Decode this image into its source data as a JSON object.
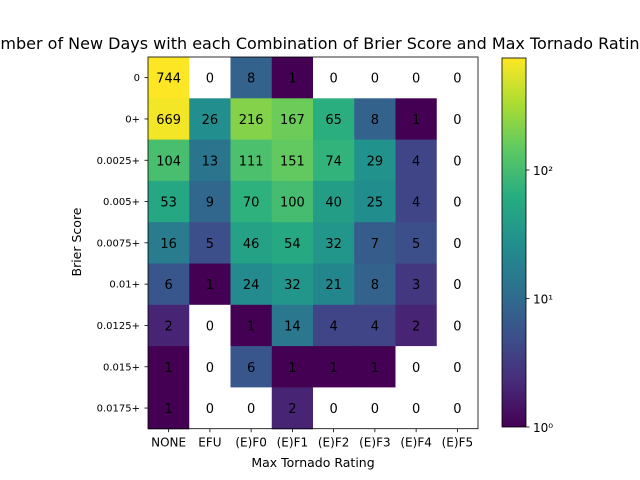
{
  "chart_data": {
    "type": "heatmap",
    "title": "Number of New Days with each Combination of Brier Score and Max Tornado Rating",
    "xlabel": "Max Tornado Rating",
    "ylabel": "Brier Score",
    "x_categories": [
      "NONE",
      "EFU",
      "(E)F0",
      "(E)F1",
      "(E)F2",
      "(E)F3",
      "(E)F4",
      "(E)F5"
    ],
    "y_categories": [
      "0",
      "0+",
      "0.0025+",
      "0.005+",
      "0.0075+",
      "0.01+",
      "0.0125+",
      "0.015+",
      "0.0175+"
    ],
    "values": [
      [
        744,
        0,
        8,
        1,
        0,
        0,
        0,
        0
      ],
      [
        669,
        26,
        216,
        167,
        65,
        8,
        1,
        0
      ],
      [
        104,
        13,
        111,
        151,
        74,
        29,
        4,
        0
      ],
      [
        53,
        9,
        70,
        100,
        40,
        25,
        4,
        0
      ],
      [
        16,
        5,
        46,
        54,
        32,
        7,
        5,
        0
      ],
      [
        6,
        1,
        24,
        32,
        21,
        8,
        3,
        0
      ],
      [
        2,
        0,
        1,
        14,
        4,
        4,
        2,
        0
      ],
      [
        1,
        0,
        6,
        1,
        1,
        1,
        0,
        0
      ],
      [
        1,
        0,
        0,
        2,
        0,
        0,
        0,
        0
      ]
    ],
    "colorbar": {
      "scale": "log",
      "colormap": "viridis",
      "range": [
        1,
        744
      ],
      "ticks": [
        {
          "value": 1,
          "label": "10⁰"
        },
        {
          "value": 10,
          "label": "10¹"
        },
        {
          "value": 100,
          "label": "10²"
        }
      ]
    },
    "zero_cells_color": "#ffffff",
    "grid": false
  }
}
